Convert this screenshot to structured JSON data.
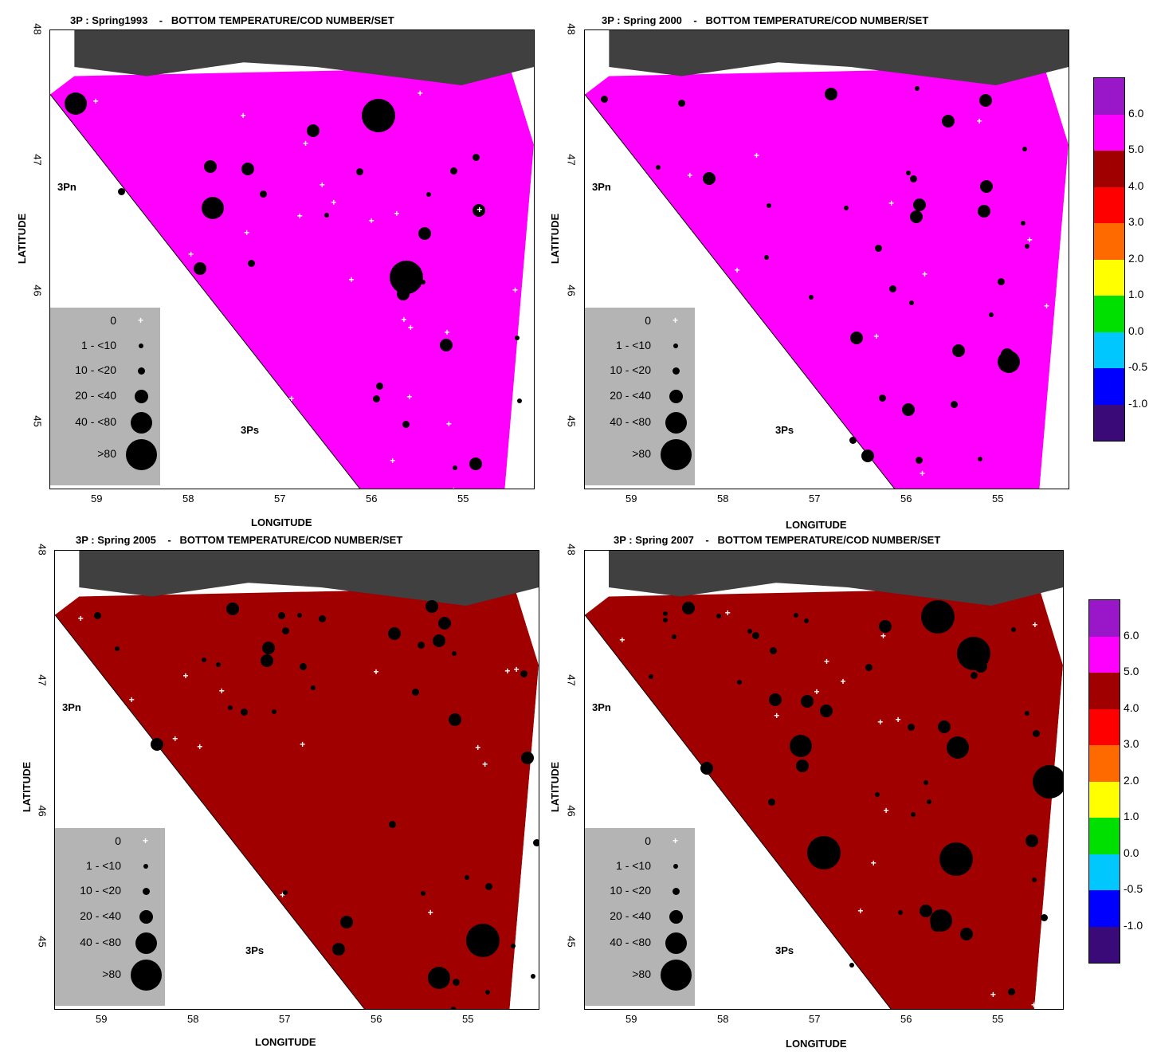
{
  "panels": [
    {
      "title": "3P : Spring1993    -   BOTTOM TEMPERATURE/COD NUMBER/SET",
      "scheme": "cold"
    },
    {
      "title": "3P : Spring 2000    -   BOTTOM TEMPERATURE/COD NUMBER/SET",
      "scheme": "warm"
    },
    {
      "title": "3P : Spring 2005    -   BOTTOM TEMPERATURE/COD NUMBER/SET",
      "scheme": "mid"
    },
    {
      "title": "3P : Spring 2007    -   BOTTOM TEMPERATURE/COD NUMBER/SET",
      "scheme": "cold2"
    }
  ],
  "axes": {
    "xlabel": "LONGITUDE",
    "ylabel": "LATITUDE",
    "xticks": [
      "59",
      "58",
      "57",
      "56",
      "55"
    ],
    "yticks": [
      "48",
      "47",
      "46",
      "45"
    ]
  },
  "regions": {
    "north": "3Pn",
    "south": "3Ps"
  },
  "size_legend": {
    "items": [
      {
        "label": "0",
        "symbol": "cross"
      },
      {
        "label": "1 - <10",
        "symbol": "dot"
      },
      {
        "label": "10 - <20",
        "symbol": "dot"
      },
      {
        "label": "20 - <40",
        "symbol": "dot"
      },
      {
        "label": "40 - <80",
        "symbol": "dot"
      },
      {
        "label": ">80",
        "symbol": "dot"
      }
    ]
  },
  "color_scale": {
    "labels": [
      "6.0",
      "5.0",
      "4.0",
      "3.0",
      "2.0",
      "1.0",
      "0.0",
      "-0.5",
      "-1.0"
    ],
    "colors": [
      "#9a17c9",
      "#ff00ff",
      "#a00000",
      "#ff0000",
      "#ff6a00",
      "#ffff00",
      "#00e000",
      "#00c8ff",
      "#0000ff",
      "#3a0a78"
    ]
  },
  "land_color": "#404040"
}
